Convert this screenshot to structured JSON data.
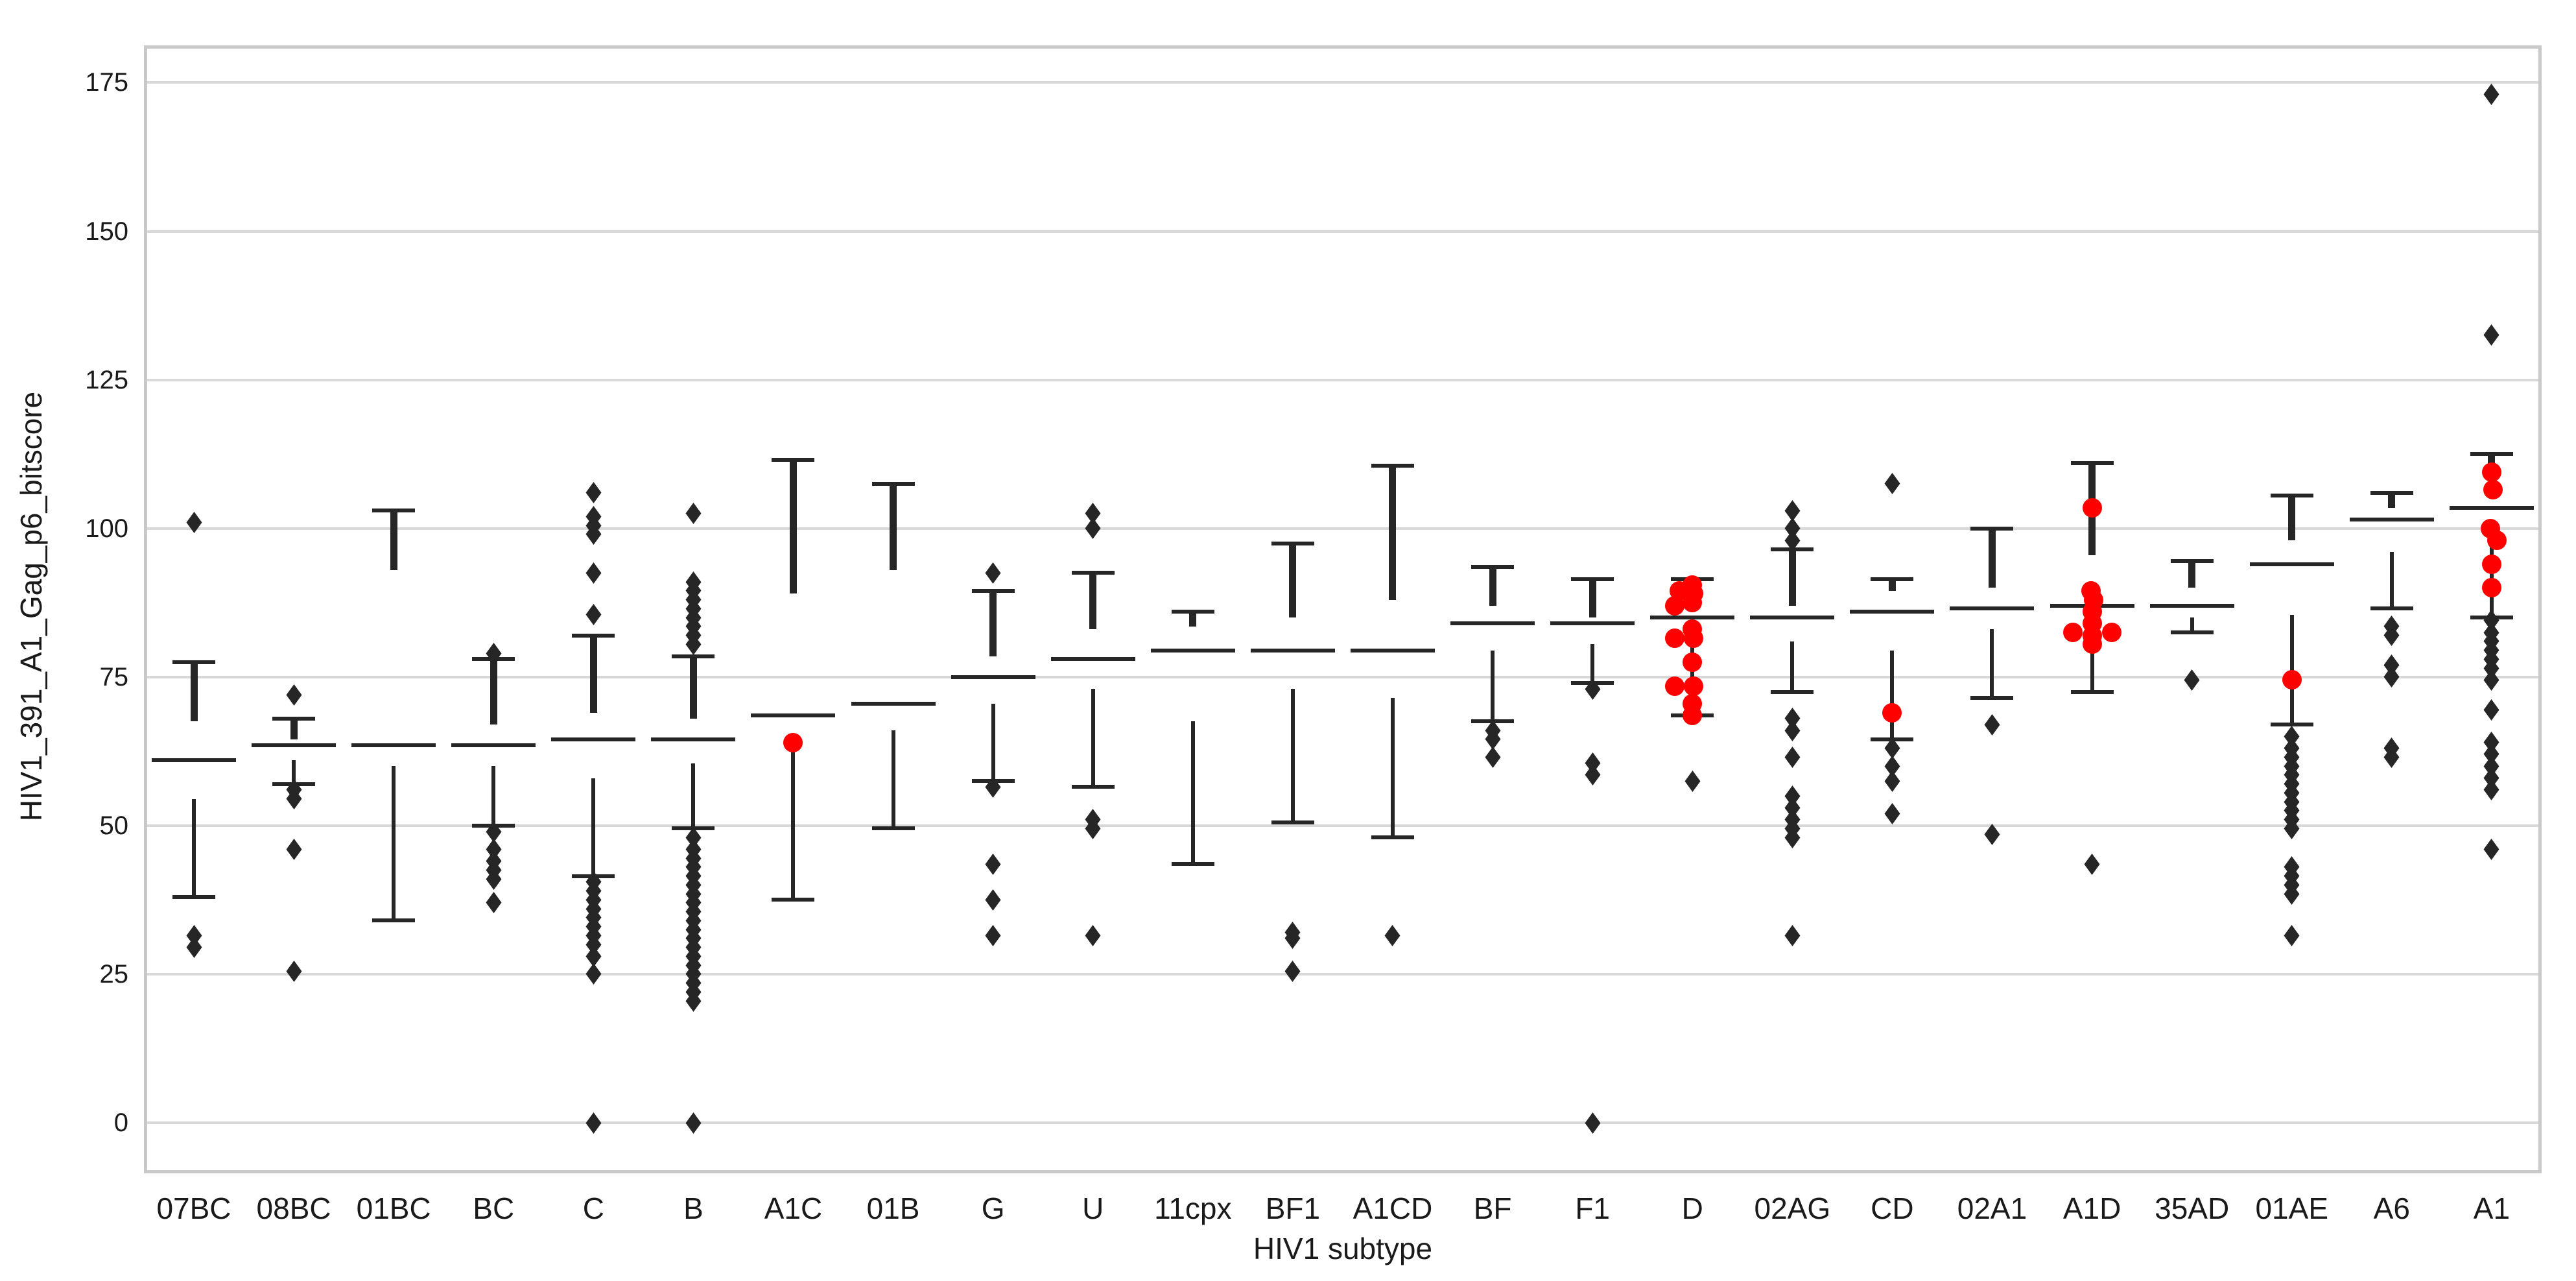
{
  "chart_data": {
    "type": "boxplot",
    "title": "",
    "xlabel": "HIV1 subtype",
    "ylabel": "HIV1_391_A1_Gag_p6_bitscore",
    "ylim": [
      0,
      181
    ],
    "yticks": [
      0,
      25,
      50,
      75,
      100,
      125,
      150,
      175
    ],
    "grid": "horizontal",
    "legend": "none",
    "colors": {
      "line": "#262626",
      "outlier": "#262626",
      "highlight": "#ff0000",
      "gridline": "#d8d8d8",
      "frame": "#c9c9c9",
      "background": "#ffffff"
    },
    "categories": [
      "07BC",
      "08BC",
      "01BC",
      "BC",
      "C",
      "B",
      "A1C",
      "01B",
      "G",
      "U",
      "11cpx",
      "BF1",
      "A1CD",
      "BF",
      "F1",
      "D",
      "02AG",
      "CD",
      "02A1",
      "A1D",
      "35AD",
      "01AE",
      "A6",
      "A1"
    ],
    "series": [
      {
        "label": "07BC",
        "whisker_top": 77.5,
        "q3": 67.5,
        "median": 61,
        "q1": 54.5,
        "whisker_bottom": 38,
        "outliers": [
          101,
          31.5,
          29.5
        ],
        "red_points": []
      },
      {
        "label": "08BC",
        "whisker_top": 68,
        "q3": 64.5,
        "median": 63.5,
        "q1": 61,
        "whisker_bottom": 57,
        "outliers": [
          72,
          56,
          54.5,
          46,
          25.5
        ],
        "red_points": []
      },
      {
        "label": "01BC",
        "whisker_top": 103,
        "q3": 93,
        "median": 63.5,
        "q1": 60,
        "whisker_bottom": 34,
        "outliers": [],
        "red_points": []
      },
      {
        "label": "BC",
        "whisker_top": 78,
        "q3": 67,
        "median": 63.5,
        "q1": 60,
        "whisker_bottom": 50,
        "outliers": [
          79,
          49,
          46,
          44,
          42.5,
          41,
          37
        ],
        "red_points": []
      },
      {
        "label": "C",
        "whisker_top": 82,
        "q3": 69,
        "median": 64.5,
        "q1": 58,
        "whisker_bottom": 41.5,
        "outliers": [
          106,
          102,
          100.5,
          99,
          92.5,
          85.5,
          40.5,
          39,
          37.5,
          36,
          34.5,
          33,
          31.5,
          30,
          28,
          25,
          0
        ],
        "red_points": []
      },
      {
        "label": "B",
        "whisker_top": 78.5,
        "q3": 68,
        "median": 64.5,
        "q1": 60.5,
        "whisker_bottom": 49.5,
        "outliers": [
          102.5,
          91,
          89.5,
          88,
          86.5,
          85,
          83.5,
          82,
          80.5,
          48,
          46,
          44.5,
          43,
          41.5,
          40,
          38.5,
          37,
          35.5,
          34,
          32.5,
          31,
          29.5,
          28,
          26.5,
          25,
          23.5,
          22,
          20.5,
          0
        ],
        "red_points": []
      },
      {
        "label": "A1C",
        "whisker_top": 111.5,
        "q3": 89,
        "median": 68.5,
        "q1": 64,
        "whisker_bottom": 37.5,
        "outliers": [],
        "red_points": [
          [
            64,
            0
          ]
        ]
      },
      {
        "label": "01B",
        "whisker_top": 107.5,
        "q3": 93,
        "median": 70.5,
        "q1": 66,
        "whisker_bottom": 49.5,
        "outliers": [],
        "red_points": []
      },
      {
        "label": "G",
        "whisker_top": 89.5,
        "q3": 78.5,
        "median": 75,
        "q1": 70.5,
        "whisker_bottom": 57.5,
        "outliers": [
          92.5,
          56.5,
          43.5,
          37.5,
          31.5
        ],
        "red_points": []
      },
      {
        "label": "U",
        "whisker_top": 92.5,
        "q3": 83,
        "median": 78,
        "q1": 73,
        "whisker_bottom": 56.5,
        "outliers": [
          102.5,
          100,
          51,
          49.5,
          31.5
        ],
        "red_points": []
      },
      {
        "label": "11cpx",
        "whisker_top": 86,
        "q3": 83.5,
        "median": 79.5,
        "q1": 67.5,
        "whisker_bottom": 43.5,
        "outliers": [],
        "red_points": []
      },
      {
        "label": "BF1",
        "whisker_top": 97.5,
        "q3": 85,
        "median": 79.5,
        "q1": 73,
        "whisker_bottom": 50.5,
        "outliers": [
          32,
          31,
          25.5
        ],
        "red_points": []
      },
      {
        "label": "A1CD",
        "whisker_top": 110.5,
        "q3": 88,
        "median": 79.5,
        "q1": 71.5,
        "whisker_bottom": 48,
        "outliers": [
          31.5
        ],
        "red_points": []
      },
      {
        "label": "BF",
        "whisker_top": 93.5,
        "q3": 87,
        "median": 84,
        "q1": 79.5,
        "whisker_bottom": 67.5,
        "outliers": [
          66,
          64.5,
          61.5
        ],
        "red_points": []
      },
      {
        "label": "F1",
        "whisker_top": 91.5,
        "q3": 85,
        "median": 84,
        "q1": 80.5,
        "whisker_bottom": 74,
        "outliers": [
          73,
          60.5,
          58.5,
          0
        ],
        "red_points": []
      },
      {
        "label": "D",
        "whisker_top": 91.5,
        "q3": 90,
        "median": 85,
        "q1": 80,
        "whisker_bottom": 68.5,
        "outliers": [
          57.5
        ],
        "red_points": [
          [
            90.5,
            0
          ],
          [
            89.5,
            -20
          ],
          [
            89,
            2
          ],
          [
            87.5,
            0
          ],
          [
            87,
            -27
          ],
          [
            83,
            0
          ],
          [
            81.5,
            -27
          ],
          [
            81.5,
            2
          ],
          [
            77.5,
            0
          ],
          [
            73.5,
            -27
          ],
          [
            73.5,
            2
          ],
          [
            70.5,
            0
          ],
          [
            68.5,
            0
          ]
        ]
      },
      {
        "label": "02AG",
        "whisker_top": 96.5,
        "q3": 87,
        "median": 85,
        "q1": 81,
        "whisker_bottom": 72.5,
        "outliers": [
          103,
          100,
          98,
          68,
          66,
          61.5,
          55,
          53,
          51,
          49.5,
          48,
          31.5
        ],
        "red_points": []
      },
      {
        "label": "CD",
        "whisker_top": 91.5,
        "q3": 89.5,
        "median": 86,
        "q1": 79.5,
        "whisker_bottom": 64.5,
        "outliers": [
          107.5,
          63,
          60,
          57.5,
          52
        ],
        "red_points": [
          [
            69,
            0
          ]
        ]
      },
      {
        "label": "02A1",
        "whisker_top": 100,
        "q3": 90,
        "median": 86.5,
        "q1": 83,
        "whisker_bottom": 71.5,
        "outliers": [
          67,
          48.5
        ],
        "red_points": []
      },
      {
        "label": "A1D",
        "whisker_top": 111,
        "q3": 95.5,
        "median": 87,
        "q1": 80,
        "whisker_bottom": 72.5,
        "outliers": [
          43.5
        ],
        "red_points": [
          [
            103.5,
            0
          ],
          [
            89.5,
            -2
          ],
          [
            88,
            2
          ],
          [
            86,
            0
          ],
          [
            84,
            0
          ],
          [
            82.5,
            -30
          ],
          [
            82.5,
            30
          ],
          [
            82,
            0
          ],
          [
            80.5,
            0
          ]
        ]
      },
      {
        "label": "35AD",
        "whisker_top": 94.5,
        "q3": 90,
        "median": 87,
        "q1": 85,
        "whisker_bottom": 82.5,
        "outliers": [
          74.5
        ],
        "red_points": []
      },
      {
        "label": "01AE",
        "whisker_top": 105.5,
        "q3": 98,
        "median": 94,
        "q1": 85.5,
        "whisker_bottom": 67,
        "outliers": [
          65,
          63,
          61.5,
          60,
          58.5,
          57,
          55.5,
          54,
          52.5,
          51,
          49.5,
          43,
          41.5,
          40,
          38.5,
          31.5
        ],
        "red_points": [
          [
            74.5,
            0
          ]
        ]
      },
      {
        "label": "A6",
        "whisker_top": 106,
        "q3": 103.5,
        "median": 101.5,
        "q1": 96,
        "whisker_bottom": 86.5,
        "outliers": [
          83.5,
          82,
          77,
          75,
          63,
          61.5
        ],
        "red_points": []
      },
      {
        "label": "A1",
        "whisker_top": 112.5,
        "q3": 108.5,
        "median": 103.5,
        "q1": 101,
        "whisker_bottom": 85,
        "outliers": [
          173,
          132.5,
          84.5,
          82.5,
          81,
          79.5,
          78,
          76.5,
          74.5,
          69.5,
          64,
          62,
          60,
          58,
          56,
          46
        ],
        "red_points": [
          [
            109.5,
            0
          ],
          [
            106.5,
            2
          ],
          [
            100,
            -2
          ],
          [
            98,
            8
          ],
          [
            94,
            0
          ],
          [
            90,
            0
          ]
        ]
      }
    ]
  }
}
